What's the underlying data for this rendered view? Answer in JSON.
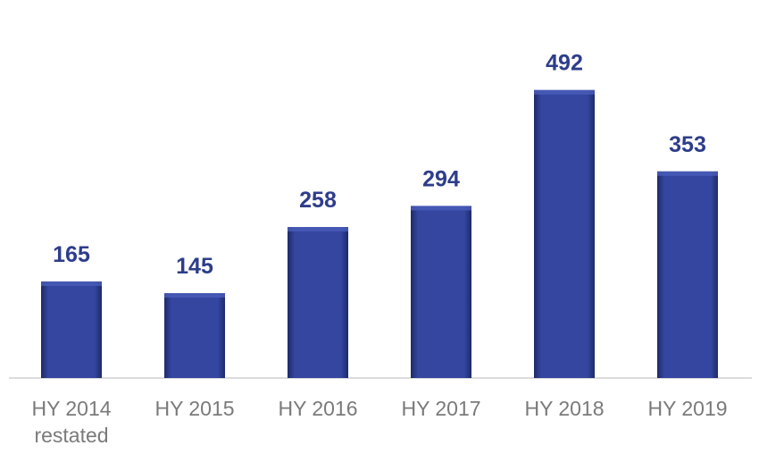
{
  "chart_data": {
    "type": "bar",
    "categories": [
      "HY 2014 restated",
      "HY 2015",
      "HY 2016",
      "HY 2017",
      "HY 2018",
      "HY 2019"
    ],
    "values": [
      165,
      145,
      258,
      294,
      492,
      353
    ],
    "color": "#2f3f91"
  }
}
